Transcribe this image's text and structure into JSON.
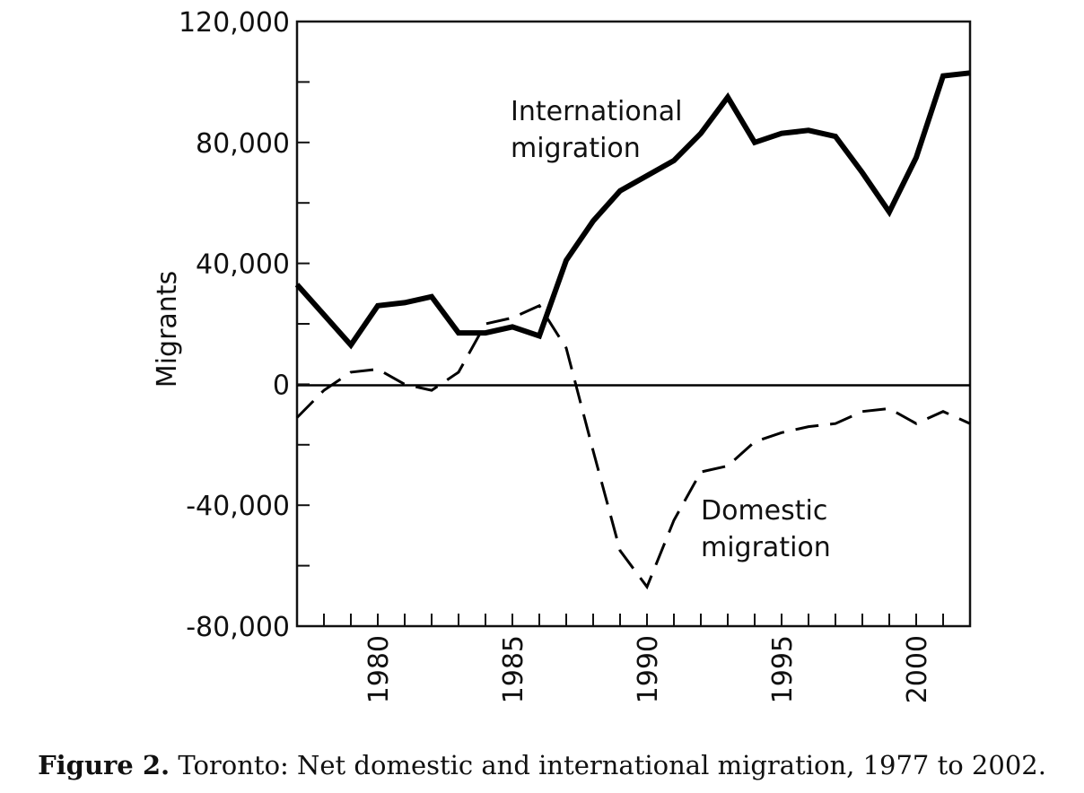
{
  "chart_data": {
    "type": "line",
    "ylabel": "Migrants",
    "xlabel": "",
    "xlim": [
      1977,
      2002
    ],
    "ylim": [
      -80000,
      120000
    ],
    "y_ticks": [
      -80000,
      -40000,
      0,
      40000,
      80000,
      120000
    ],
    "y_tick_labels": [
      "-80,000",
      "-40,000",
      "0",
      "40,000",
      "80,000",
      "120,000"
    ],
    "y_minor_ticks": [
      -60000,
      -20000,
      20000,
      60000,
      100000
    ],
    "x_ticks": [
      1980,
      1985,
      1990,
      1995,
      2000
    ],
    "x_tick_labels": [
      "1980",
      "1985",
      "1990",
      "1995",
      "2000"
    ],
    "x_minor_ticks": [
      1978,
      1979,
      1981,
      1982,
      1983,
      1984,
      1986,
      1987,
      1988,
      1989,
      1991,
      1992,
      1993,
      1994,
      1996,
      1997,
      1998,
      1999,
      2001
    ],
    "x": [
      1977,
      1978,
      1979,
      1980,
      1981,
      1982,
      1983,
      1984,
      1985,
      1986,
      1987,
      1988,
      1989,
      1990,
      1991,
      1992,
      1993,
      1994,
      1995,
      1996,
      1997,
      1998,
      1999,
      2000,
      2001,
      2002
    ],
    "series": [
      {
        "name": "International migration",
        "label_lines": [
          "International",
          "migration"
        ],
        "style": "solid",
        "values": [
          33000,
          23000,
          13000,
          26000,
          27000,
          29000,
          17000,
          17000,
          19000,
          16000,
          41000,
          54000,
          64000,
          69000,
          74000,
          83000,
          95000,
          80000,
          83000,
          84000,
          82000,
          70000,
          57000,
          75000,
          102000,
          103000
        ]
      },
      {
        "name": "Domestic migration",
        "label_lines": [
          "Domestic",
          "migration"
        ],
        "style": "dashed",
        "values": [
          -11000,
          -2000,
          4000,
          5000,
          0,
          -2000,
          4000,
          20000,
          22000,
          26000,
          12000,
          -22000,
          -55000,
          -67000,
          -45000,
          -29000,
          -27000,
          -19000,
          -16000,
          -14000,
          -13000,
          -9000,
          -8000,
          -13000,
          -9000,
          -13000
        ]
      }
    ]
  },
  "caption": {
    "label": "Figure 2.",
    "text": " Toronto: Net domestic and international migration, 1977 to 2002."
  },
  "colors": {
    "line": "#000000",
    "axis": "#111111"
  }
}
